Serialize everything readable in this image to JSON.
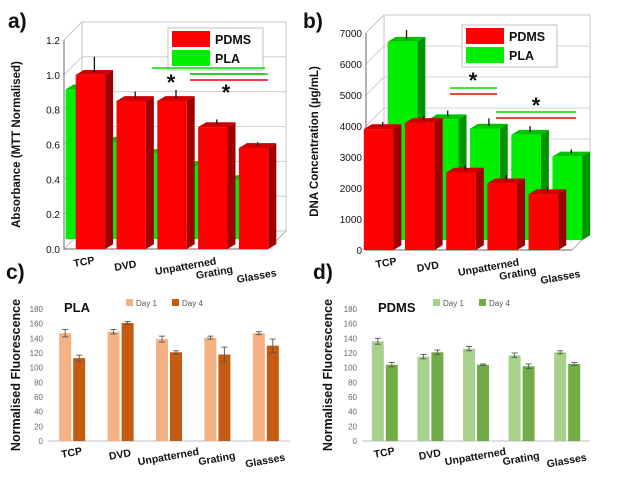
{
  "chart_data": [
    {
      "panel": "a)",
      "type": "bar",
      "ylabel": "Absorbance (MTT Normalised)",
      "categories": [
        "TCP",
        "DVD",
        "Unpatterned",
        "Grating",
        "Glasses"
      ],
      "ylim": [
        0,
        1.2
      ],
      "yticks": [
        "0.0",
        "0.2",
        "0.4",
        "0.6",
        "0.8",
        "1.0",
        "1.2"
      ],
      "series": [
        {
          "name": "PDMS",
          "color": "#ff0000",
          "values": [
            1.0,
            0.85,
            0.85,
            0.7,
            0.58
          ],
          "errors": [
            0.09,
            0.04,
            0.05,
            0.03,
            0.02
          ]
        },
        {
          "name": "PLA",
          "color": "#00ee00",
          "values": [
            0.86,
            0.56,
            0.49,
            0.42,
            0.34
          ],
          "errors": [
            0.03,
            0.03,
            0.04,
            0.03,
            0.02
          ]
        }
      ],
      "significance": [
        "*",
        "*"
      ],
      "grid": true,
      "legend": "top-right"
    },
    {
      "panel": "b)",
      "type": "bar",
      "ylabel": "DNA Concentration (µg/mL)",
      "categories": [
        "TCP",
        "DVD",
        "Unpatterned",
        "Grating",
        "Glasses"
      ],
      "ylim": [
        0,
        7000
      ],
      "yticks": [
        "0",
        "1000",
        "2000",
        "3000",
        "4000",
        "5000",
        "6000",
        "7000"
      ],
      "series": [
        {
          "name": "PDMS",
          "color": "#ff0000",
          "values": [
            3900,
            4100,
            2500,
            2150,
            1800
          ],
          "errors": [
            150,
            150,
            150,
            200,
            150
          ]
        },
        {
          "name": "PLA",
          "color": "#00ee00",
          "values": [
            6400,
            3900,
            3600,
            3400,
            2700
          ],
          "errors": [
            300,
            200,
            250,
            200,
            150
          ]
        }
      ],
      "significance": [
        "*",
        "*"
      ],
      "grid": true,
      "legend": "top-right"
    },
    {
      "panel": "c)",
      "type": "bar",
      "title": "PLA",
      "ylabel": "Normalised Fluorescence",
      "categories": [
        "TCP",
        "DVD",
        "Unpatterned",
        "Grating",
        "Glasses"
      ],
      "ylim": [
        0,
        180
      ],
      "yticks": [
        "0",
        "20",
        "40",
        "60",
        "80",
        "100",
        "120",
        "140",
        "160",
        "180"
      ],
      "series": [
        {
          "name": "Day 1",
          "color": "#f4b183",
          "values": [
            147,
            149,
            139,
            141,
            147
          ],
          "errors": [
            5,
            3,
            4,
            2,
            2
          ]
        },
        {
          "name": "Day 4",
          "color": "#c55a11",
          "values": [
            113,
            161,
            121,
            118,
            130
          ],
          "errors": [
            4,
            2,
            2,
            10,
            9
          ]
        }
      ],
      "grid": false,
      "legend": "top"
    },
    {
      "panel": "d)",
      "type": "bar",
      "title": "PDMS",
      "ylabel": "Normalised Fluorescence",
      "categories": [
        "TCP",
        "DVD",
        "Unpatterned",
        "Grating",
        "Glasses"
      ],
      "ylim": [
        0,
        180
      ],
      "yticks": [
        "0",
        "20",
        "40",
        "60",
        "80",
        "100",
        "120",
        "140",
        "160",
        "180"
      ],
      "series": [
        {
          "name": "Day 1",
          "color": "#a9d18e",
          "values": [
            136,
            115,
            126,
            117,
            121
          ],
          "errors": [
            4,
            3,
            3,
            3,
            2
          ]
        },
        {
          "name": "Day 4",
          "color": "#70ad47",
          "values": [
            104,
            121,
            104,
            102,
            105
          ],
          "errors": [
            3,
            3,
            1,
            3,
            2
          ]
        }
      ],
      "grid": false,
      "legend": "top"
    }
  ]
}
